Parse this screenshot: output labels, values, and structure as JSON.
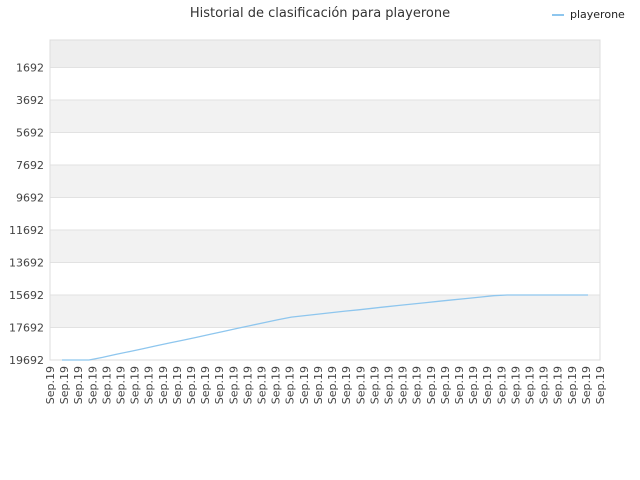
{
  "chart_data": {
    "type": "line",
    "title": "Historial de clasificación para playerone",
    "xlabel": "",
    "ylabel": "",
    "y_reversed": true,
    "ylim": [
      19692,
      0
    ],
    "yticks": [
      1692,
      3692,
      5692,
      7692,
      9692,
      11692,
      13692,
      15692,
      17692,
      19692
    ],
    "x": [
      "Sep.19",
      "Sep.19",
      "Sep.19",
      "Sep.19",
      "Sep.19",
      "Sep.19",
      "Sep.19",
      "Sep.19",
      "Sep.19",
      "Sep.19",
      "Sep.19",
      "Sep.19",
      "Sep.19",
      "Sep.19",
      "Sep.19",
      "Sep.19",
      "Sep.19",
      "Sep.19",
      "Sep.19",
      "Sep.19",
      "Sep.19",
      "Sep.19",
      "Sep.19",
      "Sep.19",
      "Sep.19",
      "Sep.19",
      "Sep.19",
      "Sep.19",
      "Sep.19",
      "Sep.19",
      "Sep.19",
      "Sep.19",
      "Sep.19",
      "Sep.19",
      "Sep.19",
      "Sep.19",
      "Sep.19",
      "Sep.19",
      "Sep.19",
      "Sep.19"
    ],
    "series": [
      {
        "name": "playerone",
        "color": "#8ec6ee",
        "values": [
          19692,
          19692,
          19692,
          19530,
          19350,
          19175,
          18995,
          18815,
          18640,
          18465,
          18290,
          18110,
          17930,
          17750,
          17570,
          17390,
          17210,
          17050,
          16960,
          16870,
          16775,
          16685,
          16600,
          16510,
          16420,
          16330,
          16245,
          16160,
          16075,
          15990,
          15905,
          15820,
          15735,
          15692,
          15692,
          15692,
          15692,
          15692,
          15692,
          15692
        ]
      }
    ],
    "grid": true,
    "legend": "top-right"
  }
}
